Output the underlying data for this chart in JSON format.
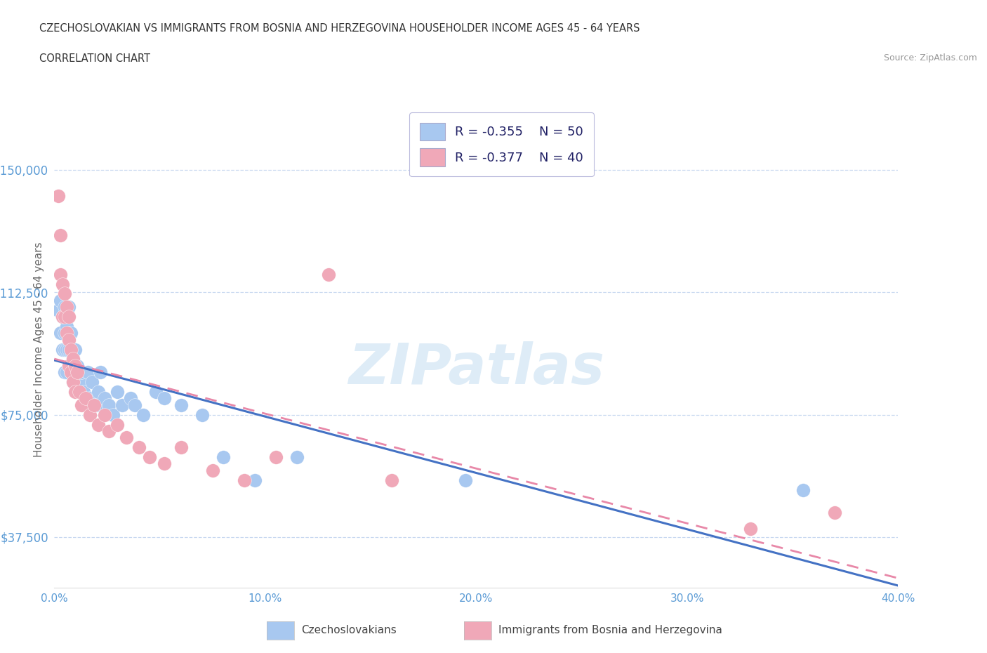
{
  "title_line1": "CZECHOSLOVAKIAN VS IMMIGRANTS FROM BOSNIA AND HERZEGOVINA HOUSEHOLDER INCOME AGES 45 - 64 YEARS",
  "title_line2": "CORRELATION CHART",
  "source_text": "Source: ZipAtlas.com",
  "ylabel": "Householder Income Ages 45 - 64 years",
  "ytick_labels": [
    "$37,500",
    "$75,000",
    "$112,500",
    "$150,000"
  ],
  "ytick_values": [
    37500,
    75000,
    112500,
    150000
  ],
  "xlim": [
    0.0,
    0.4
  ],
  "ylim": [
    22000,
    168000
  ],
  "blue_color": "#a8c8f0",
  "pink_color": "#f0a8b8",
  "blue_line_color": "#4472c4",
  "pink_line_color": "#e888a8",
  "watermark": "ZIPatlas",
  "blue_scatter_x": [
    0.002,
    0.003,
    0.003,
    0.004,
    0.004,
    0.005,
    0.005,
    0.005,
    0.005,
    0.006,
    0.006,
    0.006,
    0.007,
    0.007,
    0.007,
    0.007,
    0.008,
    0.008,
    0.008,
    0.009,
    0.009,
    0.01,
    0.01,
    0.011,
    0.012,
    0.013,
    0.014,
    0.016,
    0.017,
    0.018,
    0.02,
    0.021,
    0.022,
    0.024,
    0.026,
    0.028,
    0.03,
    0.032,
    0.036,
    0.038,
    0.042,
    0.048,
    0.052,
    0.06,
    0.07,
    0.08,
    0.095,
    0.115,
    0.195,
    0.355
  ],
  "blue_scatter_y": [
    107000,
    110000,
    100000,
    105000,
    95000,
    108000,
    100000,
    95000,
    88000,
    102000,
    95000,
    88000,
    108000,
    100000,
    95000,
    90000,
    100000,
    95000,
    88000,
    92000,
    85000,
    95000,
    88000,
    90000,
    85000,
    88000,
    82000,
    88000,
    80000,
    85000,
    78000,
    82000,
    88000,
    80000,
    78000,
    75000,
    82000,
    78000,
    80000,
    78000,
    75000,
    82000,
    80000,
    78000,
    75000,
    62000,
    55000,
    62000,
    55000,
    52000
  ],
  "pink_scatter_x": [
    0.002,
    0.003,
    0.003,
    0.004,
    0.004,
    0.005,
    0.005,
    0.006,
    0.006,
    0.007,
    0.007,
    0.007,
    0.008,
    0.008,
    0.009,
    0.009,
    0.01,
    0.01,
    0.011,
    0.012,
    0.013,
    0.015,
    0.017,
    0.019,
    0.021,
    0.024,
    0.026,
    0.03,
    0.034,
    0.04,
    0.045,
    0.052,
    0.06,
    0.075,
    0.09,
    0.105,
    0.13,
    0.16,
    0.33,
    0.37
  ],
  "pink_scatter_y": [
    142000,
    130000,
    118000,
    115000,
    105000,
    112000,
    105000,
    108000,
    100000,
    105000,
    98000,
    90000,
    95000,
    88000,
    92000,
    85000,
    90000,
    82000,
    88000,
    82000,
    78000,
    80000,
    75000,
    78000,
    72000,
    75000,
    70000,
    72000,
    68000,
    65000,
    62000,
    60000,
    65000,
    58000,
    55000,
    62000,
    118000,
    55000,
    40000,
    45000
  ],
  "grid_color": "#c8d8f0",
  "tick_label_color": "#5b9bd5",
  "xlabel_ticks": [
    "0.0%",
    "10.0%",
    "20.0%",
    "30.0%",
    "40.0%"
  ],
  "xtick_vals": [
    0.0,
    0.1,
    0.2,
    0.3,
    0.4
  ]
}
